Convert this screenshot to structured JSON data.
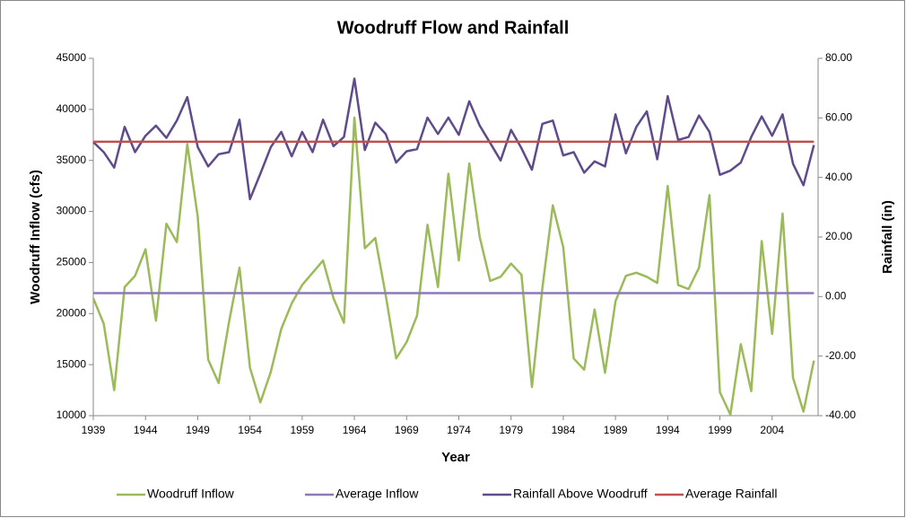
{
  "chart_data": {
    "type": "line",
    "title": "Woodruff Flow and Rainfall",
    "xlabel": "Year",
    "ylabel": "Woodruff Inflow (cfs)",
    "y2label": "Rainfall (in)",
    "x": [
      1939,
      1940,
      1941,
      1942,
      1943,
      1944,
      1945,
      1946,
      1947,
      1948,
      1949,
      1950,
      1951,
      1952,
      1953,
      1954,
      1955,
      1956,
      1957,
      1958,
      1959,
      1960,
      1961,
      1962,
      1963,
      1964,
      1965,
      1966,
      1967,
      1968,
      1969,
      1970,
      1971,
      1972,
      1973,
      1974,
      1975,
      1976,
      1977,
      1978,
      1979,
      1980,
      1981,
      1982,
      1983,
      1984,
      1985,
      1986,
      1987,
      1988,
      1989,
      1990,
      1991,
      1992,
      1993,
      1994,
      1995,
      1996,
      1997,
      1998,
      1999,
      2000,
      2001,
      2002,
      2003,
      2004,
      2005,
      2006,
      2007,
      2008
    ],
    "series": [
      {
        "name": "Woodruff Inflow",
        "color": "#9bbb59",
        "values": [
          21500,
          19000,
          12500,
          22600,
          23700,
          26300,
          19300,
          28800,
          27000,
          36600,
          29500,
          15500,
          13200,
          19200,
          24500,
          14700,
          11300,
          14300,
          18500,
          21000,
          22800,
          24000,
          25200,
          21500,
          19100,
          39200,
          26400,
          27400,
          21800,
          15600,
          17200,
          19800,
          28700,
          22600,
          33700,
          25200,
          34700,
          27500,
          23200,
          23600,
          24900,
          23800,
          12800,
          22500,
          30600,
          26500,
          15600,
          14500,
          20400,
          14200,
          21200,
          23700,
          24000,
          23600,
          23000,
          32500,
          22800,
          22400,
          24500,
          31600,
          12300,
          10100,
          17000,
          12400,
          27100,
          18000,
          29800,
          13700,
          10400,
          15400
        ]
      },
      {
        "name": "Average Inflow",
        "color": "#8e78b8",
        "values": [
          22000,
          22000,
          22000,
          22000,
          22000,
          22000,
          22000,
          22000,
          22000,
          22000,
          22000,
          22000,
          22000,
          22000,
          22000,
          22000,
          22000,
          22000,
          22000,
          22000,
          22000,
          22000,
          22000,
          22000,
          22000,
          22000,
          22000,
          22000,
          22000,
          22000,
          22000,
          22000,
          22000,
          22000,
          22000,
          22000,
          22000,
          22000,
          22000,
          22000,
          22000,
          22000,
          22000,
          22000,
          22000,
          22000,
          22000,
          22000,
          22000,
          22000,
          22000,
          22000,
          22000,
          22000,
          22000,
          22000,
          22000,
          22000,
          22000,
          22000,
          22000,
          22000,
          22000,
          22000,
          22000,
          22000,
          22000,
          22000,
          22000,
          22000
        ]
      },
      {
        "name": "Rainfall Above Woodruff",
        "color": "#5f4b8b",
        "axis": "y2",
        "values": [
          51.9,
          48.5,
          43.3,
          57,
          48.5,
          54,
          57.4,
          53.3,
          59.1,
          67,
          50.2,
          43.7,
          47.8,
          48.5,
          59.4,
          32.7,
          41.3,
          50.2,
          55.3,
          47.1,
          55.3,
          48.5,
          59.4,
          50.5,
          53.6,
          73.2,
          49.2,
          58.4,
          54.6,
          45,
          48.8,
          49.5,
          60.1,
          54.6,
          60.1,
          54.3,
          65.6,
          57.4,
          51.6,
          45.7,
          56,
          49.8,
          42.6,
          58,
          59.1,
          47.4,
          48.5,
          41.6,
          45.4,
          43.7,
          61.2,
          48.1,
          57,
          62.2,
          46.1,
          67.3,
          52.6,
          53.6,
          60.8,
          55.3,
          40.9,
          42.3,
          45,
          53.6,
          60.5,
          54,
          61.2,
          44.6,
          37.4,
          50.9
        ]
      },
      {
        "name": "Average Rainfall",
        "color": "#c0504d",
        "axis": "y2",
        "values": [
          52,
          52,
          52,
          52,
          52,
          52,
          52,
          52,
          52,
          52,
          52,
          52,
          52,
          52,
          52,
          52,
          52,
          52,
          52,
          52,
          52,
          52,
          52,
          52,
          52,
          52,
          52,
          52,
          52,
          52,
          52,
          52,
          52,
          52,
          52,
          52,
          52,
          52,
          52,
          52,
          52,
          52,
          52,
          52,
          52,
          52,
          52,
          52,
          52,
          52,
          52,
          52,
          52,
          52,
          52,
          52,
          52,
          52,
          52,
          52,
          52,
          52,
          52,
          52,
          52,
          52,
          52,
          52,
          52,
          52
        ]
      }
    ],
    "xlim": [
      1939,
      2008.4
    ],
    "xticks": [
      1939,
      1944,
      1949,
      1954,
      1959,
      1964,
      1969,
      1974,
      1979,
      1984,
      1989,
      1994,
      1999,
      2004
    ],
    "ylim": [
      10000,
      45000
    ],
    "yticks": [
      10000,
      15000,
      20000,
      25000,
      30000,
      35000,
      40000,
      45000
    ],
    "y2lim": [
      -40,
      80
    ],
    "y2ticks": [
      {
        "value": -40,
        "label": "-40.00"
      },
      {
        "value": -20,
        "label": "-20.00"
      },
      {
        "value": 0,
        "label": "0.00"
      },
      {
        "value": 20,
        "label": "20.00"
      },
      {
        "value": 40,
        "label": "40.00"
      },
      {
        "value": 60,
        "label": "60.00"
      },
      {
        "value": 80,
        "label": "80.00"
      }
    ],
    "legend": "bottom"
  }
}
